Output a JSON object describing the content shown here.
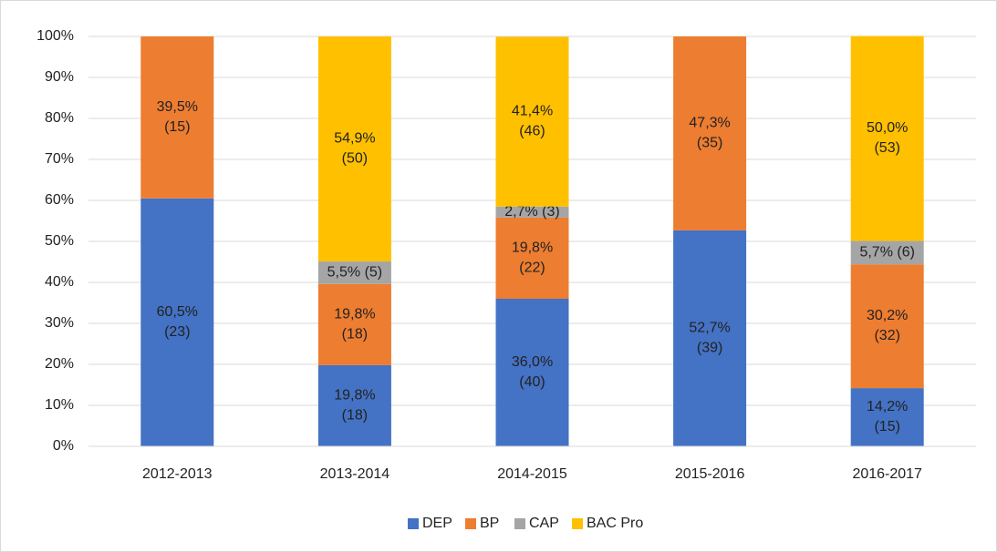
{
  "chart_data": {
    "type": "stacked_bar",
    "categories": [
      "2012-2013",
      "2013-2014",
      "2014-2015",
      "2015-2016",
      "2016-2017"
    ],
    "series": [
      {
        "name": "DEP",
        "color": "#4472c4",
        "values": [
          60.5,
          19.8,
          36.0,
          52.7,
          14.2
        ],
        "value_labels": [
          "60,5%\n(23)",
          "19,8%\n(18)",
          "36,0%\n(40)",
          "52,7%\n(39)",
          "14,2%\n(15)"
        ]
      },
      {
        "name": "BP",
        "color": "#ed7d31",
        "values": [
          39.5,
          19.8,
          19.8,
          47.3,
          30.2
        ],
        "value_labels": [
          "39,5%\n(15)",
          "19,8%\n(18)",
          "19,8%\n(22)",
          "47,3%\n(35)",
          "30,2%\n(32)"
        ]
      },
      {
        "name": "CAP",
        "color": "#a5a5a5",
        "values": [
          null,
          5.5,
          2.7,
          null,
          5.7
        ],
        "value_labels": [
          null,
          "5,5% (5)",
          "2,7% (3)",
          null,
          "5,7% (6)"
        ]
      },
      {
        "name": "BAC Pro",
        "color": "#ffc000",
        "values": [
          null,
          54.9,
          41.4,
          null,
          50.0
        ],
        "value_labels": [
          null,
          "54,9%\n(50)",
          "41,4%\n(46)",
          null,
          "50,0%\n(53)"
        ]
      }
    ],
    "ylim": [
      0,
      100
    ],
    "yticks": [
      {
        "value": 0,
        "label": "0%"
      },
      {
        "value": 10,
        "label": "10%"
      },
      {
        "value": 20,
        "label": "20%"
      },
      {
        "value": 30,
        "label": "30%"
      },
      {
        "value": 40,
        "label": "40%"
      },
      {
        "value": 50,
        "label": "50%"
      },
      {
        "value": 60,
        "label": "60%"
      },
      {
        "value": 70,
        "label": "70%"
      },
      {
        "value": 80,
        "label": "80%"
      },
      {
        "value": 90,
        "label": "90%"
      },
      {
        "value": 100,
        "label": "100%"
      }
    ],
    "grid": true,
    "legend": "bottom"
  }
}
